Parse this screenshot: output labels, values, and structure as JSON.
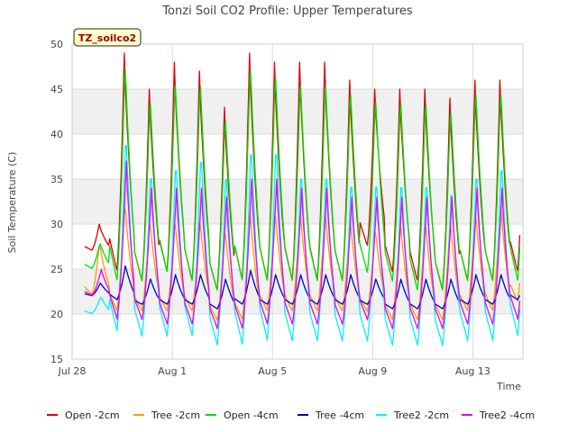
{
  "chart_data": {
    "type": "line",
    "title": "Tonzi Soil CO2 Profile: Upper Temperatures",
    "xlabel": "Time",
    "ylabel": "Soil Temperature (C)",
    "annotation": "TZ_soilco2",
    "xlim": [
      "2024-07-28",
      "2024-08-15"
    ],
    "ylim": [
      15,
      50
    ],
    "x_ticks": [
      {
        "label": "Jul 28",
        "date": "2024-07-28"
      },
      {
        "label": "Aug 1",
        "date": "2024-08-01"
      },
      {
        "label": "Aug 5",
        "date": "2024-08-05"
      },
      {
        "label": "Aug 9",
        "date": "2024-08-09"
      },
      {
        "label": "Aug 13",
        "date": "2024-08-13"
      }
    ],
    "y_ticks": [
      15,
      20,
      25,
      30,
      35,
      40,
      45,
      50
    ],
    "grid": true,
    "legend_position": "bottom",
    "days": [
      "2024-07-28",
      "2024-07-29",
      "2024-07-30",
      "2024-07-31",
      "2024-08-01",
      "2024-08-02",
      "2024-08-03",
      "2024-08-04",
      "2024-08-05",
      "2024-08-06",
      "2024-08-07",
      "2024-08-08",
      "2024-08-09",
      "2024-08-10",
      "2024-08-11",
      "2024-08-12",
      "2024-08-13",
      "2024-08-14"
    ],
    "series": [
      {
        "name": "Open -2cm",
        "color": "#dd0000",
        "daily_max": [
          30,
          49,
          45,
          48,
          47,
          43,
          49,
          48,
          48,
          48,
          46,
          45,
          45,
          45,
          44,
          46,
          46,
          47
        ],
        "daily_min": [
          27,
          24,
          23,
          24,
          23,
          22,
          23,
          23,
          23,
          23,
          23,
          27,
          24,
          23,
          22,
          23,
          23,
          24
        ]
      },
      {
        "name": "Tree -2cm",
        "color": "#ff9900",
        "daily_max": [
          28,
          33,
          31,
          31,
          31,
          30,
          32,
          32,
          32,
          32,
          31,
          30,
          31,
          31,
          31,
          32,
          33,
          34
        ],
        "daily_min": [
          22,
          20,
          20,
          20,
          20,
          19,
          19,
          20,
          20,
          20,
          20,
          20,
          19,
          19,
          19,
          20,
          20,
          21
        ]
      },
      {
        "name": "Open -4cm",
        "color": "#00dd00",
        "daily_max": [
          28,
          49,
          45,
          47,
          47,
          43,
          49,
          48,
          47,
          47,
          46,
          45,
          45,
          45,
          44,
          46,
          46,
          48
        ],
        "daily_min": [
          25,
          23,
          23,
          24,
          23,
          22,
          23,
          23,
          23,
          23,
          23,
          24,
          23,
          22,
          22,
          23,
          23,
          23
        ]
      },
      {
        "name": "Tree -4cm",
        "color": "#0000cc",
        "daily_max": [
          23.5,
          25.5,
          24,
          24.5,
          24.5,
          24,
          25,
          24.5,
          24.5,
          24.5,
          24.5,
          24,
          24,
          24,
          24,
          24.5,
          24.5,
          25
        ],
        "daily_min": [
          22,
          21.5,
          21,
          21,
          21,
          20.5,
          21,
          21,
          21,
          21,
          21,
          21,
          20.5,
          20.5,
          20.5,
          21,
          21,
          21.5
        ]
      },
      {
        "name": "Tree2 -2cm",
        "color": "#00eeff",
        "daily_max": [
          22,
          41,
          37,
          38,
          39,
          37,
          40,
          40,
          37,
          37,
          36,
          36,
          36,
          36,
          35,
          37,
          38,
          40
        ],
        "daily_min": [
          20,
          17.5,
          17,
          17,
          17,
          16,
          16,
          16.5,
          16.5,
          16.5,
          16.5,
          16.5,
          16,
          16,
          16,
          16.5,
          16.5,
          17
        ]
      },
      {
        "name": "Tree2 -4cm",
        "color": "#ee00ee",
        "daily_max": [
          25,
          37,
          34,
          34,
          34,
          33,
          35,
          35,
          34,
          34,
          33,
          33,
          33,
          33,
          33,
          34,
          34,
          36
        ],
        "daily_min": [
          22,
          19,
          19,
          18.5,
          18.5,
          18,
          18,
          18.5,
          18.5,
          18.5,
          18.5,
          19,
          18,
          18,
          18,
          18.5,
          18.5,
          19
        ]
      }
    ]
  }
}
